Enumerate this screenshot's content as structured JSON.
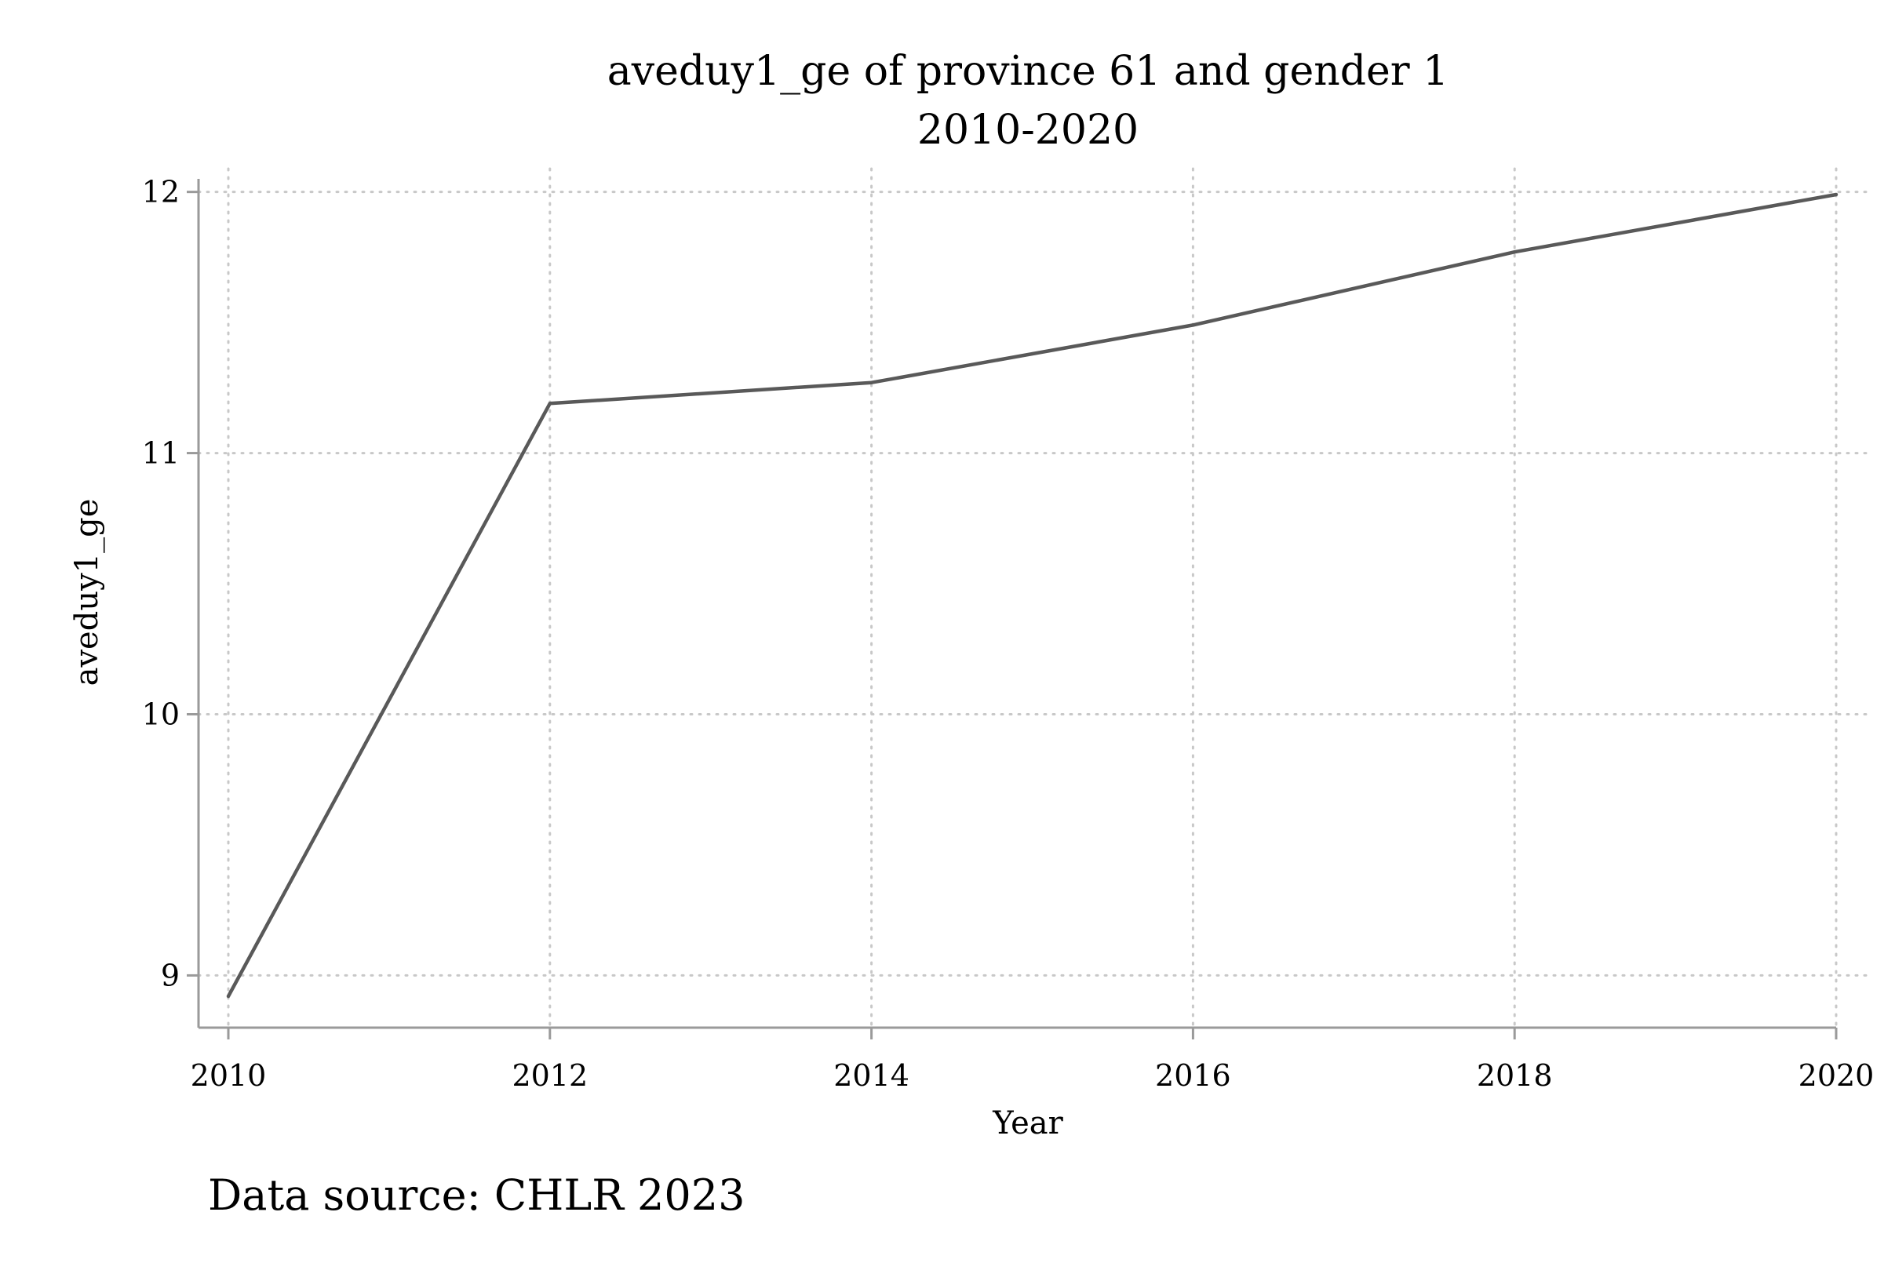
{
  "chart_data": {
    "type": "line",
    "title": "aveduy1_ge of province 61 and gender 1",
    "subtitle": "2010-2020",
    "xlabel": "Year",
    "ylabel": "aveduy1_ge",
    "note": "Data source: CHLR 2023",
    "x": [
      2010,
      2012,
      2014,
      2016,
      2018,
      2020
    ],
    "xticks": [
      2010,
      2012,
      2014,
      2016,
      2018,
      2020
    ],
    "yticks": [
      9,
      10,
      11,
      12
    ],
    "xlim": [
      2010,
      2020
    ],
    "ylim": [
      8.8,
      12.05
    ],
    "grid": true,
    "line_color": "#595959",
    "series": [
      {
        "values": [
          8.92,
          11.19,
          11.27,
          11.49,
          11.77,
          11.99
        ]
      }
    ]
  }
}
